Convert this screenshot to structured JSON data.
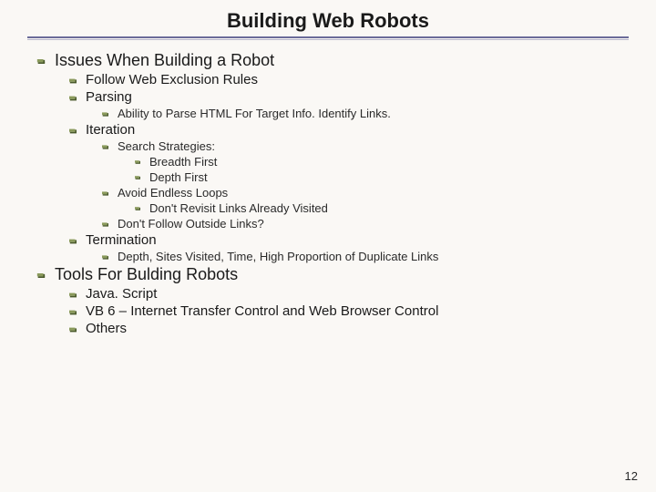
{
  "title": "Building Web Robots",
  "pageNumber": "12",
  "bulletColors": {
    "fill": "#8a9a5b",
    "shadow": "#4a5a2b"
  },
  "items": [
    {
      "level": 0,
      "text": "Issues When Building a Robot"
    },
    {
      "level": 1,
      "text": "Follow Web Exclusion Rules"
    },
    {
      "level": 1,
      "text": "Parsing"
    },
    {
      "level": 2,
      "text": "Ability to Parse HTML For Target Info.  Identify Links."
    },
    {
      "level": 1,
      "text": "Iteration"
    },
    {
      "level": 2,
      "text": "Search Strategies:"
    },
    {
      "level": 3,
      "text": "Breadth First"
    },
    {
      "level": 3,
      "text": "Depth First"
    },
    {
      "level": 2,
      "text": "Avoid Endless Loops"
    },
    {
      "level": 3,
      "text": "Don't Revisit Links Already Visited"
    },
    {
      "level": 2,
      "text": "Don't Follow Outside Links?"
    },
    {
      "level": 1,
      "text": "Termination"
    },
    {
      "level": 2,
      "text": "Depth, Sites Visited, Time, High Proportion of Duplicate Links"
    },
    {
      "level": 0,
      "text": "Tools For Bulding Robots"
    },
    {
      "level": 1,
      "text": "Java. Script"
    },
    {
      "level": 1,
      "text": "VB 6 – Internet Transfer Control and Web Browser Control"
    },
    {
      "level": 1,
      "text": "Others"
    }
  ]
}
